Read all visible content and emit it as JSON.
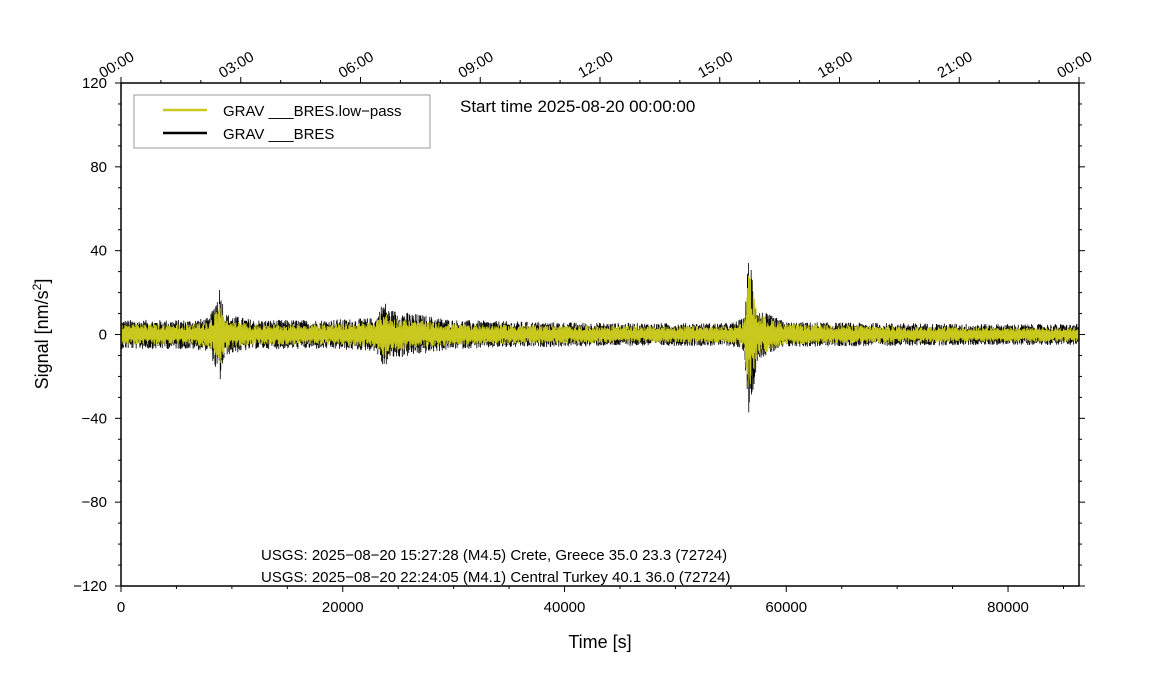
{
  "chart_data": {
    "type": "line",
    "start_time": "Start time 2025-08-20 00:00:00",
    "xlabel": "Time [s]",
    "ylabel": "Signal [nm/s²]",
    "ylabel_base": "Signal [nm/s",
    "ylabel_sup": "2",
    "ylabel_tail": "]",
    "xlim": [
      0,
      86400
    ],
    "ylim": [
      -120,
      120
    ],
    "x_ticks": [
      0,
      20000,
      40000,
      60000,
      80000
    ],
    "y_ticks": [
      -120,
      -80,
      -40,
      0,
      40,
      80,
      120
    ],
    "x_tick_labels": [
      "0",
      "20000",
      "40000",
      "60000",
      "80000"
    ],
    "y_tick_labels": [
      "−120",
      "−80",
      "−40",
      "0",
      "40",
      "80",
      "120"
    ],
    "top_time_ticks": [
      0,
      10800,
      21600,
      32400,
      43200,
      54000,
      64800,
      75600,
      86400
    ],
    "top_time_labels": [
      "00:00",
      "03:00",
      "06:00",
      "09:00",
      "12:00",
      "15:00",
      "18:00",
      "21:00",
      "00:00"
    ],
    "legend_position": "top-left",
    "series": [
      {
        "name": "GRAV ___BRES.low−pass",
        "color": "#c8c81e",
        "envelope": {
          "x": [
            0,
            3000,
            6000,
            8000,
            8700,
            8900,
            9400,
            12000,
            18000,
            23000,
            23700,
            24200,
            30000,
            38000,
            45000,
            50000,
            55000,
            56200,
            56600,
            56800,
            57400,
            60000,
            70000,
            80000,
            86400
          ],
          "amplitude": [
            5,
            5,
            5,
            6,
            13,
            17,
            7,
            5,
            5,
            6,
            12,
            8,
            5,
            4.5,
            4,
            4,
            4,
            6,
            30,
            27,
            10,
            5,
            4,
            3.5,
            3.5
          ]
        }
      },
      {
        "name": "GRAV ___BRES",
        "color": "#000000",
        "envelope": {
          "x": [
            0,
            3000,
            6000,
            8000,
            8700,
            8900,
            9400,
            12000,
            18000,
            23000,
            23700,
            24200,
            30000,
            38000,
            45000,
            50000,
            55000,
            56200,
            56600,
            56800,
            57400,
            60000,
            70000,
            80000,
            86400
          ],
          "amplitude": [
            7,
            7,
            7,
            8,
            20,
            24,
            10,
            7,
            7,
            8,
            17,
            12,
            7,
            6,
            5.5,
            5.5,
            5.5,
            8,
            38,
            36,
            12,
            6,
            5.5,
            5,
            5
          ]
        }
      }
    ],
    "annotations": [
      "USGS: 2025−08−20 15:27:28 (M4.5) Crete, Greece 35.0 23.3 (72724)",
      "USGS: 2025−08−20 22:24:05 (M4.1) Central Turkey 40.1 36.0 (72724)"
    ],
    "grid": false
  }
}
